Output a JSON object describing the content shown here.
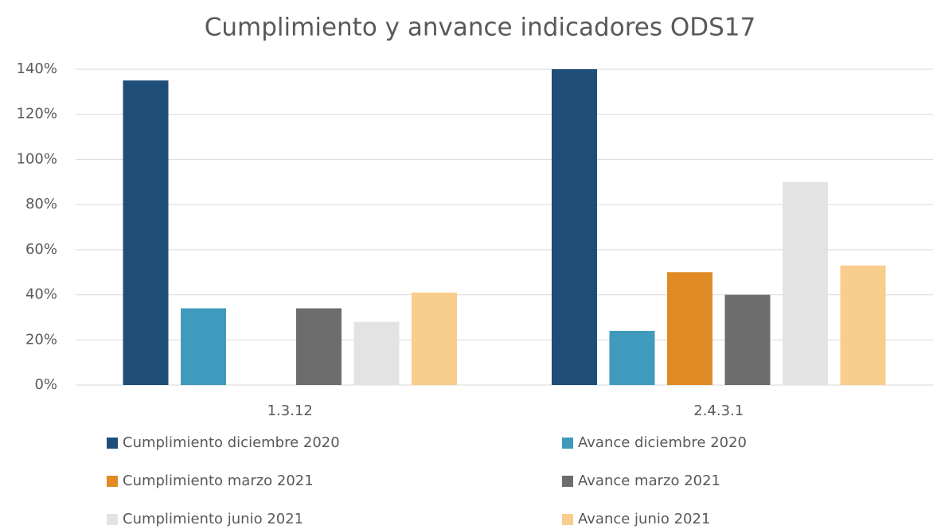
{
  "chart_data": {
    "type": "bar",
    "title": "Cumplimiento y anvance indicadores ODS17",
    "categories": [
      "1.3.12",
      "2.4.3.1"
    ],
    "series": [
      {
        "name": "Cumplimiento diciembre 2020",
        "color": "#1f4e79",
        "values": [
          135,
          140
        ]
      },
      {
        "name": "Avance diciembre 2020",
        "color": "#3f9abd",
        "values": [
          34,
          24
        ]
      },
      {
        "name": "Cumplimiento marzo 2021",
        "color": "#e08a25",
        "values": [
          0,
          50
        ]
      },
      {
        "name": "Avance marzo 2021",
        "color": "#6d6d6d",
        "values": [
          34,
          40
        ]
      },
      {
        "name": "Cumplimiento junio 2021",
        "color": "#e3e3e3",
        "values": [
          28,
          90
        ]
      },
      {
        "name": "Avance junio 2021",
        "color": "#f9cd8b",
        "values": [
          41,
          53
        ]
      }
    ],
    "ylim": [
      0,
      140
    ],
    "yticks": [
      {
        "value": 0,
        "label": "0%"
      },
      {
        "value": 20,
        "label": "20%"
      },
      {
        "value": 40,
        "label": "40%"
      },
      {
        "value": 60,
        "label": "60%"
      },
      {
        "value": 80,
        "label": "80%"
      },
      {
        "value": 100,
        "label": "100%"
      },
      {
        "value": 120,
        "label": "120%"
      },
      {
        "value": 140,
        "label": "140%"
      }
    ],
    "grid": true,
    "legend": "bottom"
  }
}
